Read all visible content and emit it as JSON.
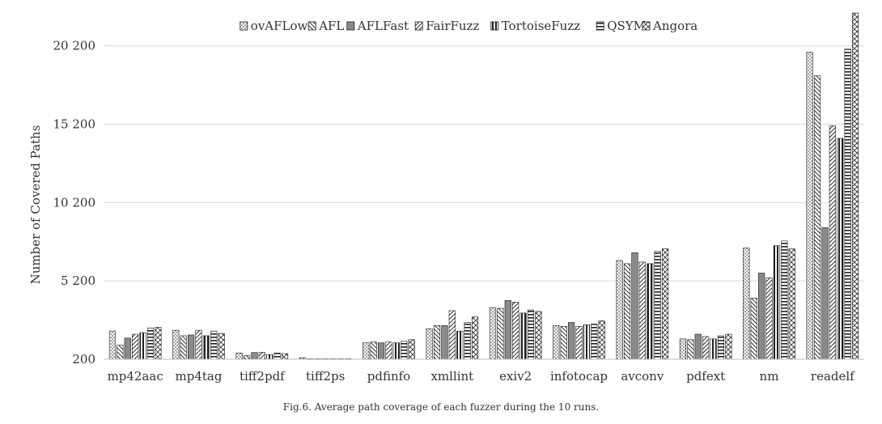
{
  "chart_data": {
    "type": "bar",
    "ylabel": "Number of Covered Paths",
    "y_ticks": [
      200,
      5200,
      10200,
      15200,
      20200
    ],
    "y_tick_labels": [
      "200",
      "5 200",
      "10 200",
      "15 200",
      "20 200"
    ],
    "ylim": [
      200,
      22200
    ],
    "grid": "horizontal",
    "legend_position": "top",
    "categories": [
      "mp42aac",
      "mp4tag",
      "tiff2pdf",
      "tiff2ps",
      "pdfinfo",
      "xmllint",
      "exiv2",
      "infotocap",
      "avconv",
      "pdfext",
      "nm",
      "readelf"
    ],
    "series": [
      {
        "name": "ovAFLow",
        "pattern": "dots",
        "values": [
          2000,
          2050,
          600,
          300,
          1250,
          2150,
          3500,
          2350,
          6500,
          1500,
          7300,
          19800
        ]
      },
      {
        "name": "AFL",
        "pattern": "back-diagonal",
        "values": [
          1100,
          1700,
          450,
          230,
          1300,
          2350,
          3450,
          2300,
          6300,
          1450,
          4100,
          18300
        ]
      },
      {
        "name": "AFLFast",
        "pattern": "solid-gray",
        "values": [
          1550,
          1750,
          630,
          230,
          1250,
          2350,
          3950,
          2550,
          7000,
          1800,
          5700,
          8600
        ]
      },
      {
        "name": "FairFuzz",
        "pattern": "forward-diagonal",
        "values": [
          1800,
          2050,
          650,
          230,
          1300,
          3300,
          3850,
          2300,
          6400,
          1650,
          5400,
          15100
        ]
      },
      {
        "name": "TortoiseFuzz",
        "pattern": "vertical",
        "values": [
          1900,
          1700,
          500,
          230,
          1250,
          2000,
          3150,
          2400,
          6300,
          1500,
          7450,
          14300
        ]
      },
      {
        "name": "QSYM",
        "pattern": "horizontal",
        "values": [
          2200,
          2000,
          600,
          230,
          1350,
          2550,
          3350,
          2450,
          7100,
          1700,
          7750,
          20000
        ]
      },
      {
        "name": "Angora",
        "pattern": "crosshatch",
        "values": [
          2250,
          1850,
          560,
          230,
          1450,
          2900,
          3250,
          2650,
          7250,
          1800,
          7250,
          22300
        ]
      }
    ]
  },
  "caption": "Fig.6.   Average path coverage of each fuzzer during the 10 runs."
}
